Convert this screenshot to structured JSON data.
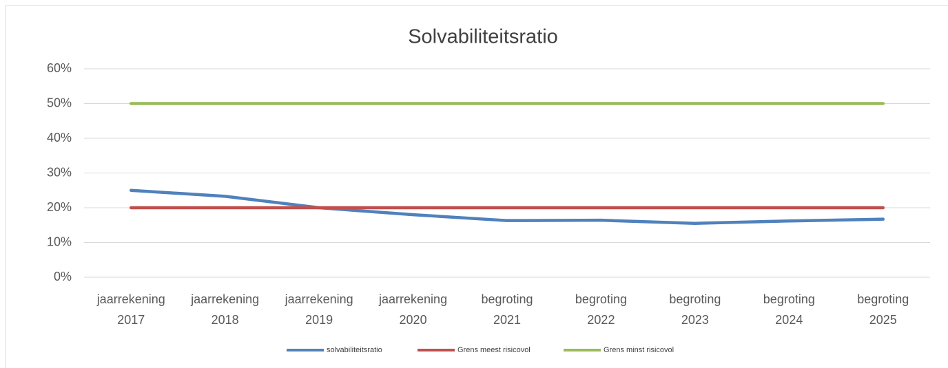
{
  "chart_data": {
    "type": "line",
    "title": "Solvabiliteitsratio",
    "categories": [
      "jaarrekening 2017",
      "jaarrekening 2018",
      "jaarrekening 2019",
      "jaarrekening 2020",
      "begroting 2021",
      "begroting 2022",
      "begroting 2023",
      "begroting 2024",
      "begroting 2025"
    ],
    "series": [
      {
        "name": "solvabiliteitsratio",
        "color": "#4f81bd",
        "values": [
          25,
          23.3,
          20,
          18,
          16.3,
          16.4,
          15.5,
          16.2,
          16.7
        ]
      },
      {
        "name": "Grens meest risicovol",
        "color": "#c0504d",
        "values": [
          20,
          20,
          20,
          20,
          20,
          20,
          20,
          20,
          20
        ]
      },
      {
        "name": "Grens minst risicovol",
        "color": "#9bbb59",
        "values": [
          50,
          50,
          50,
          50,
          50,
          50,
          50,
          50,
          50
        ]
      }
    ],
    "ylim": [
      0,
      60
    ],
    "yticks": [
      {
        "value": 0,
        "label": "0%"
      },
      {
        "value": 10,
        "label": "10%"
      },
      {
        "value": 20,
        "label": "20%"
      },
      {
        "value": 30,
        "label": "30%"
      },
      {
        "value": 40,
        "label": "40%"
      },
      {
        "value": 50,
        "label": "50%"
      },
      {
        "value": 60,
        "label": "60%"
      }
    ],
    "grid": true,
    "legend": "bottom"
  }
}
